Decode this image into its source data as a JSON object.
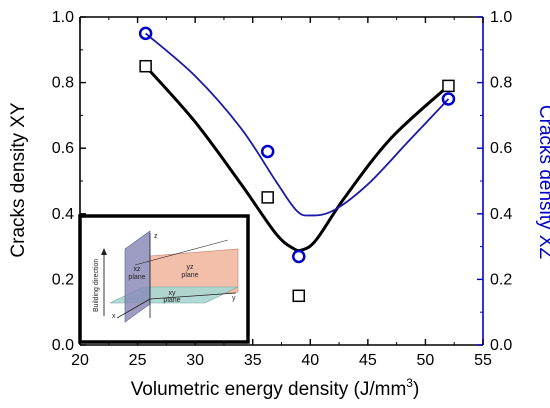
{
  "chart_data": {
    "type": "scatter",
    "xlabel": "Volumetric energy density (J/mm",
    "xlabel_sup": "3",
    "xlabel_end": ")",
    "ylabel_left": "Cracks density XY",
    "ylabel_right": "Cracks density XZ",
    "xlim": [
      20,
      55
    ],
    "ylim": [
      0.0,
      1.0
    ],
    "x_ticks": [
      "20",
      "25",
      "30",
      "35",
      "40",
      "45",
      "50",
      "55"
    ],
    "y_ticks_left": [
      "0.0",
      "0.2",
      "0.4",
      "0.6",
      "0.8",
      "1.0"
    ],
    "y_ticks_right": [
      "0.0",
      "0.2",
      "0.4",
      "0.6",
      "0.8",
      "1.0"
    ],
    "grid": false,
    "series": [
      {
        "axis": "left",
        "marker": "square",
        "color": "#000000",
        "x": [
          25.7,
          36.3,
          39.0,
          52.0
        ],
        "y": [
          0.85,
          0.45,
          0.15,
          0.79
        ]
      },
      {
        "axis": "right",
        "marker": "circle",
        "color": "#0000cc",
        "x": [
          25.7,
          36.3,
          39.0,
          52.0
        ],
        "y": [
          0.95,
          0.59,
          0.27,
          0.75
        ]
      }
    ],
    "fit_curves": [
      {
        "color": "#000000",
        "x": [
          25.7,
          30.0,
          34.0,
          37.0,
          38.5,
          39.3,
          40.5,
          43.0,
          47.0,
          52.0
        ],
        "y": [
          0.85,
          0.68,
          0.49,
          0.34,
          0.295,
          0.29,
          0.32,
          0.45,
          0.63,
          0.79
        ]
      },
      {
        "color": "#1a1aaa",
        "x": [
          25.7,
          30.0,
          34.0,
          37.0,
          38.8,
          40.0,
          42.0,
          45.0,
          48.5,
          52.0
        ],
        "y": [
          0.95,
          0.82,
          0.66,
          0.5,
          0.41,
          0.395,
          0.41,
          0.49,
          0.62,
          0.75
        ]
      }
    ],
    "inset": {
      "y_axis_text": "Building direction",
      "plane_labels": [
        {
          "id": "xz",
          "line1": "xz",
          "line2": "plane"
        },
        {
          "id": "yz",
          "line1": "yz",
          "line2": "plane"
        },
        {
          "id": "xy",
          "line1": "xy",
          "line2": "plane"
        }
      ],
      "axis_letters": {
        "z": "z",
        "x": "x",
        "y": "y"
      },
      "colors": {
        "xz": "#8c8cb8",
        "yz": "#f0b49c",
        "xy": "#a8d6d2"
      }
    }
  }
}
